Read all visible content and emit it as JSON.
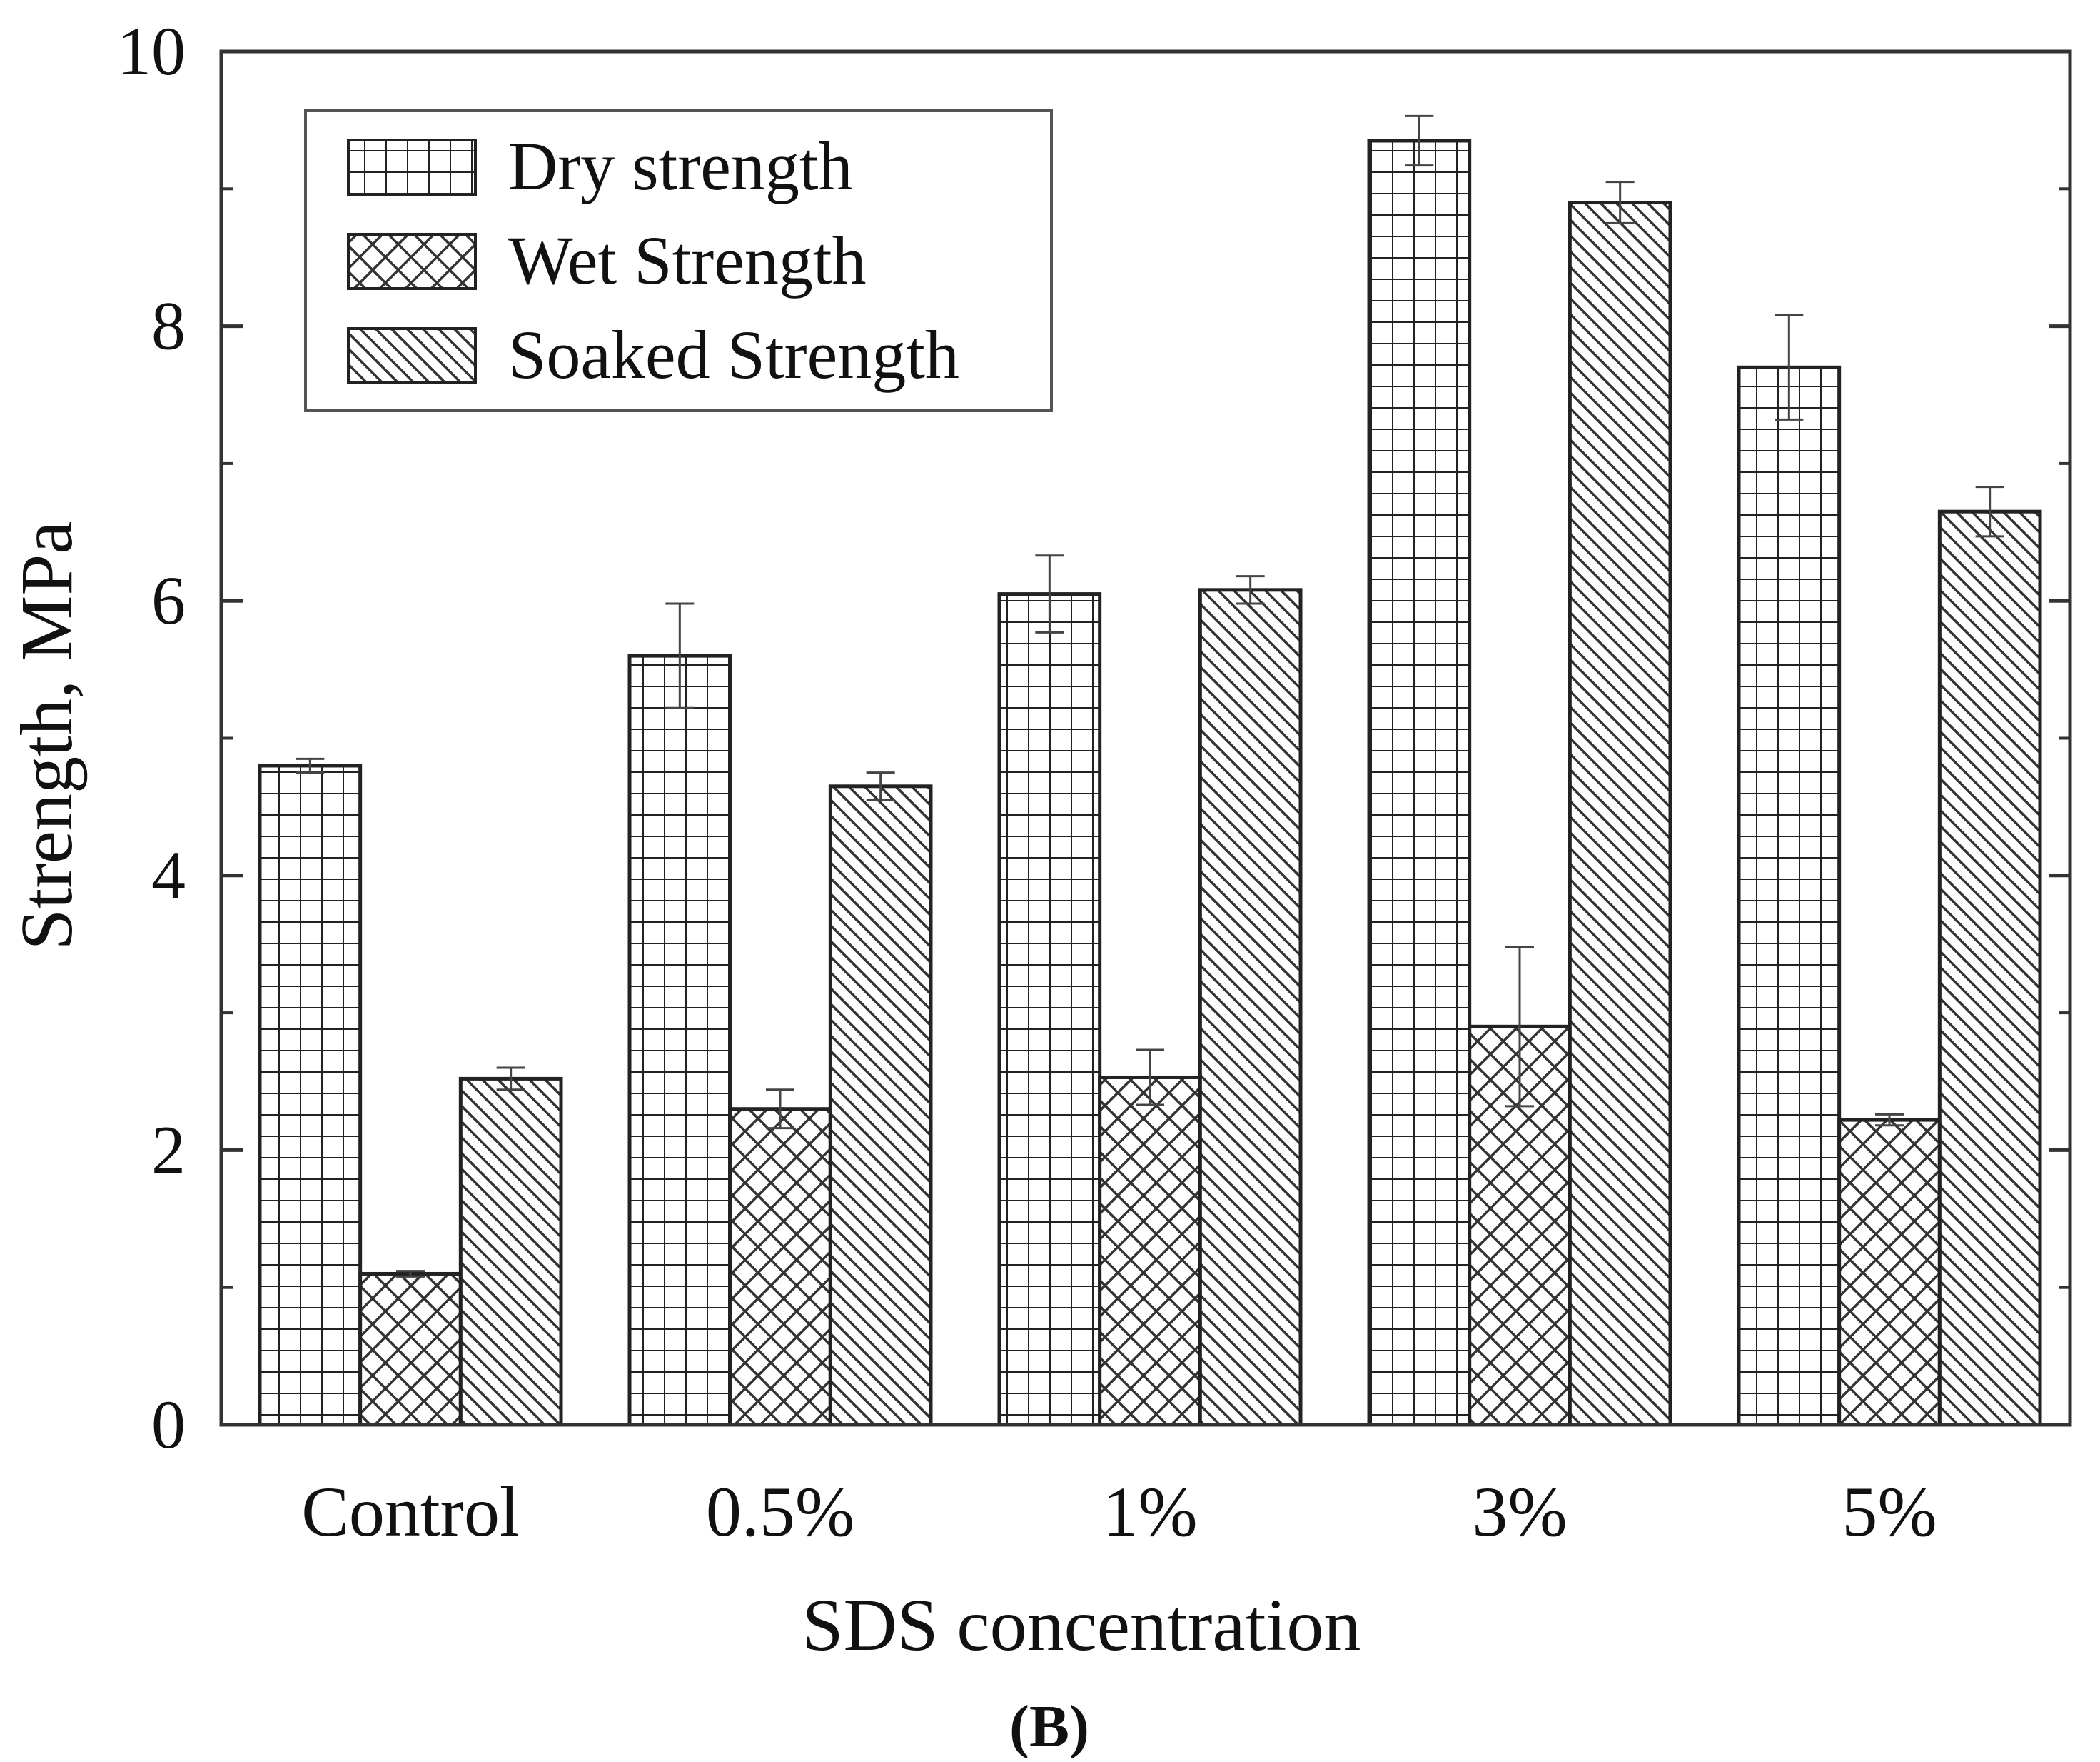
{
  "chart_data": {
    "type": "bar",
    "title": "",
    "panel_label": "(B)",
    "xlabel": "SDS concentration",
    "ylabel": "Strength, MPa",
    "ylim": [
      0,
      10
    ],
    "yticks": [
      0,
      2,
      4,
      6,
      8,
      10
    ],
    "categories": [
      "Control",
      "0.5%",
      "1%",
      "3%",
      "5%"
    ],
    "legend_position": "top-left",
    "series": [
      {
        "name": "Dry strength",
        "pattern": "grid",
        "values": [
          4.8,
          5.6,
          6.05,
          9.35,
          7.7
        ],
        "errors": [
          0.05,
          0.38,
          0.28,
          0.18,
          0.38
        ]
      },
      {
        "name": "Wet Strength",
        "pattern": "crosshatch",
        "values": [
          1.1,
          2.3,
          2.53,
          2.9,
          2.22
        ],
        "errors": [
          0.02,
          0.14,
          0.2,
          0.58,
          0.04
        ]
      },
      {
        "name": "Soaked Strength",
        "pattern": "diagonal",
        "values": [
          2.52,
          4.65,
          6.08,
          8.9,
          6.65
        ],
        "errors": [
          0.08,
          0.1,
          0.1,
          0.15,
          0.18
        ]
      }
    ],
    "grid": false
  }
}
